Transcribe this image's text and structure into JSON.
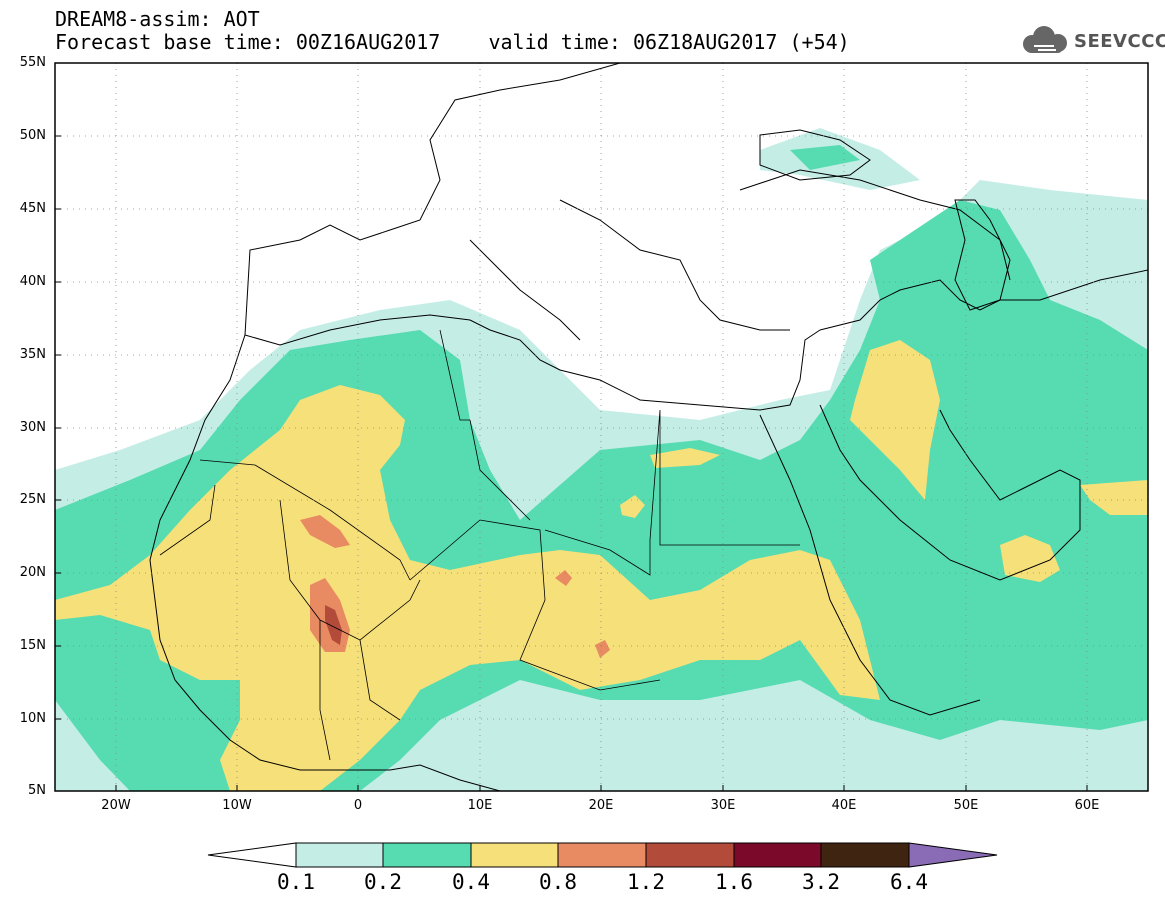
{
  "header": {
    "line1": "DREAM8-assim: AOT",
    "line2": "Forecast base time: 00Z16AUG2017    valid time: 06Z18AUG2017 (+54)"
  },
  "logo": {
    "text": "SEEVCCC",
    "icon": "cloud-icon"
  },
  "map": {
    "lat_labels": [
      "55N",
      "50N",
      "45N",
      "40N",
      "35N",
      "30N",
      "25N",
      "20N",
      "15N",
      "10N",
      "5N"
    ],
    "lon_labels": [
      "20W",
      "10W",
      "0",
      "10E",
      "20E",
      "30E",
      "40E",
      "50E",
      "60E"
    ],
    "lon_range": [
      -25,
      65
    ],
    "lat_range": [
      5,
      55
    ],
    "gridlines": "dotted"
  },
  "colorbar": {
    "labels": [
      "0.1",
      "0.2",
      "0.4",
      "0.8",
      "1.2",
      "1.6",
      "3.2",
      "6.4"
    ],
    "colors": [
      "#ffffff",
      "#c4ede6",
      "#57dbb0",
      "#f6e07a",
      "#e88a62",
      "#b34b3a",
      "#7b0a2a",
      "#3f2412",
      "#8a6bb5"
    ]
  },
  "fill_colors": {
    "c1": "#c4ede6",
    "c2": "#57dbb0",
    "c3": "#f6e07a",
    "c4": "#e88a62",
    "c5": "#b34b3a"
  }
}
